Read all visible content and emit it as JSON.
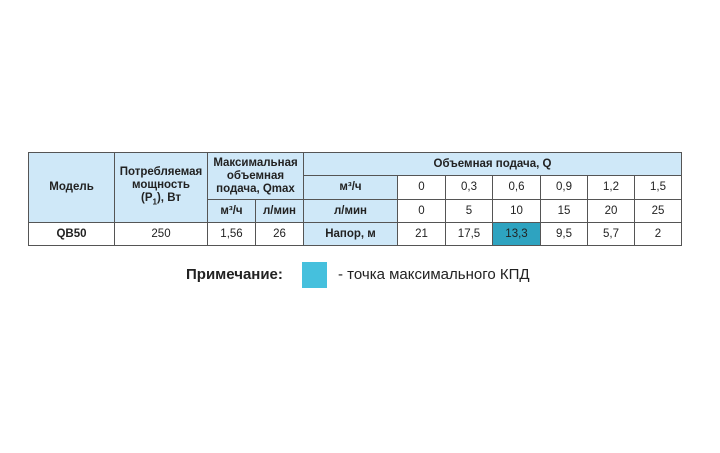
{
  "headers": {
    "model": "Модель",
    "power": "Потребляемая мощность",
    "power_sym": "(P",
    "power_sub": "1",
    "power_unit": "), Вт",
    "qmax": "Максимальная объемная подача, Qmax",
    "qmax_m3": "м³/ч",
    "qmax_lmin": "л/мин",
    "flow": "Объемная подача, Q",
    "row_m3": "м³/ч",
    "row_lmin": "л/мин",
    "row_head": "Напор, м"
  },
  "flow_m3h": [
    "0",
    "0,3",
    "0,6",
    "0,9",
    "1,2",
    "1,5"
  ],
  "flow_lmin": [
    "0",
    "5",
    "10",
    "15",
    "20",
    "25"
  ],
  "row": {
    "model": "QB50",
    "power": "250",
    "qmax_m3": "1,56",
    "qmax_lmin": "26",
    "head": [
      "21",
      "17,5",
      "13,3",
      "9,5",
      "5,7",
      "2"
    ]
  },
  "highlight_index": 2,
  "colors": {
    "header": "#cfe8f8",
    "highlight": "#2ea3c0",
    "legend": "#45c0dd"
  },
  "note": {
    "label": "Примечание:",
    "text": "- точка максимального КПД"
  }
}
